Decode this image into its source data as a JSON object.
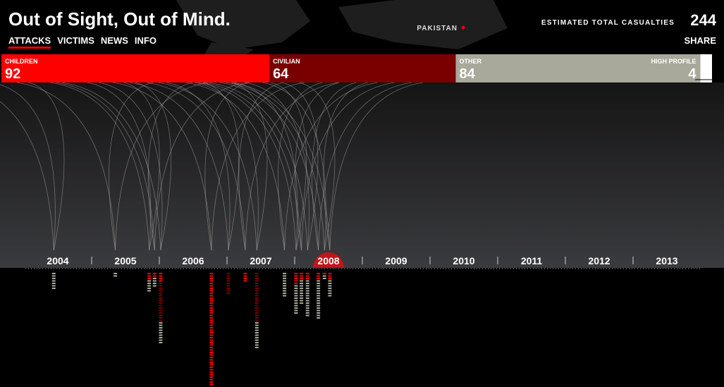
{
  "header": {
    "title": "Out of Sight, Out of Mind.",
    "nav": [
      "ATTACKS",
      "VICTIMS",
      "NEWS",
      "INFO"
    ],
    "location": "PAKISTAN",
    "total_label": "ESTIMATED TOTAL CASUALTIES",
    "total": 244,
    "share": "SHARE"
  },
  "categories": [
    {
      "label": "CHILDREN",
      "value": 92,
      "color": "#ff0000"
    },
    {
      "label": "CIVILIAN",
      "value": 64,
      "color": "#7a0000"
    },
    {
      "label": "OTHER",
      "value": 84,
      "color": "#a9a99b"
    },
    {
      "label": "HIGH PROFILE",
      "value": 4,
      "color": "#ffffff"
    }
  ],
  "timeline": {
    "years": [
      2004,
      2005,
      2006,
      2007,
      2008,
      2009,
      2010,
      2011,
      2012,
      2013
    ],
    "selected": 2008,
    "strikes": [
      {
        "x": 2004.44,
        "children": 0,
        "civilian": 0,
        "other": 7
      },
      {
        "x": 2005.35,
        "children": 0,
        "civilian": 0,
        "other": 2
      },
      {
        "x": 2005.85,
        "children": 3,
        "civilian": 0,
        "other": 5
      },
      {
        "x": 2005.93,
        "children": 2,
        "civilian": 0,
        "other": 4
      },
      {
        "x": 2006.02,
        "children": 4,
        "civilian": 16,
        "other": 9
      },
      {
        "x": 2006.77,
        "children": 46,
        "civilian": 0,
        "other": 0
      },
      {
        "x": 2007.02,
        "children": 0,
        "civilian": 9,
        "other": 0
      },
      {
        "x": 2007.27,
        "children": 4,
        "civilian": 0,
        "other": 0
      },
      {
        "x": 2007.44,
        "children": 0,
        "civilian": 20,
        "other": 11
      },
      {
        "x": 2007.85,
        "children": 0,
        "civilian": 0,
        "other": 10
      },
      {
        "x": 2008.02,
        "children": 5,
        "civilian": 0,
        "other": 12
      },
      {
        "x": 2008.1,
        "children": 3,
        "civilian": 0,
        "other": 10
      },
      {
        "x": 2008.19,
        "children": 3,
        "civilian": 0,
        "other": 15
      },
      {
        "x": 2008.35,
        "children": 3,
        "civilian": 0,
        "other": 16
      },
      {
        "x": 2008.44,
        "children": 1,
        "civilian": 0,
        "other": 2
      },
      {
        "x": 2008.52,
        "children": 3,
        "civilian": 0,
        "other": 7
      }
    ]
  }
}
